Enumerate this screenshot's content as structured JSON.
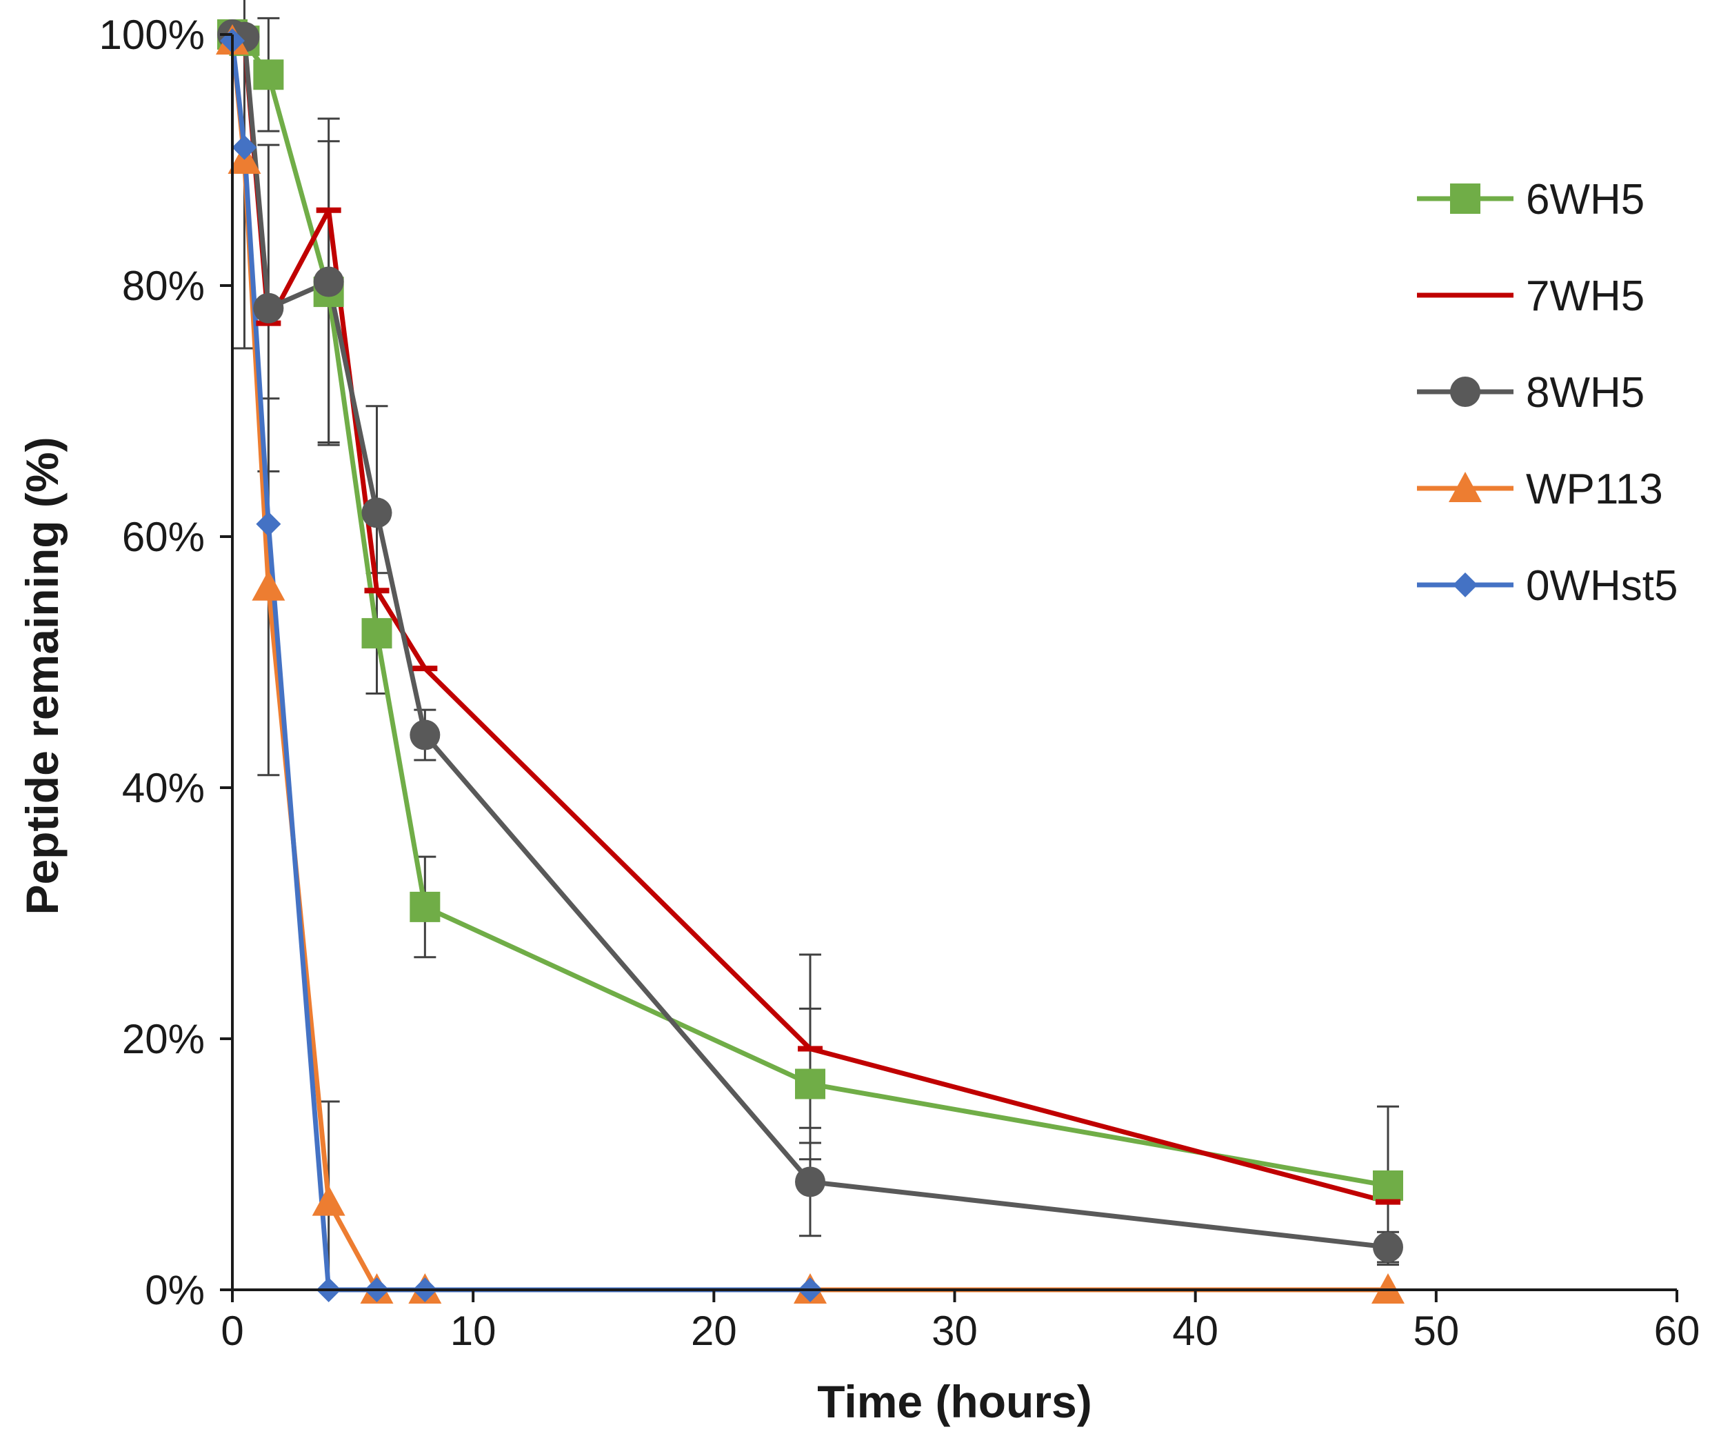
{
  "chart_data": {
    "type": "line",
    "title": "",
    "xlabel": "Time (hours)",
    "ylabel": "Peptide remaining (%)",
    "xlim": [
      0,
      60
    ],
    "ylim": [
      0,
      100
    ],
    "xticks": [
      0,
      10,
      20,
      30,
      40,
      50,
      60
    ],
    "xtick_labels": [
      "0",
      "10",
      "20",
      "30",
      "40",
      "50",
      "60"
    ],
    "yticks": [
      0,
      20,
      40,
      60,
      80,
      100
    ],
    "ytick_labels": [
      "0%",
      "20%",
      "40%",
      "60%",
      "80%",
      "100%"
    ],
    "grid": false,
    "legend_position": "right",
    "error_bar_color": "#404040",
    "series": [
      {
        "name": "6WH5",
        "color": "#70ad47",
        "marker": "square",
        "x": [
          0,
          0.5,
          1.5,
          4,
          6,
          8,
          24,
          48
        ],
        "y": [
          100,
          99.5,
          96.8,
          79.5,
          52.3,
          30.5,
          16.4,
          8.3
        ],
        "err": [
          0,
          0,
          4.5,
          12,
          4.8,
          4,
          6,
          6.3
        ]
      },
      {
        "name": "7WH5",
        "color": "#c00000",
        "marker": "none",
        "x": [
          0,
          0.5,
          1.5,
          4,
          6,
          8,
          24,
          48
        ],
        "y": [
          100,
          99.5,
          77,
          86,
          55.7,
          49.5,
          19.2,
          7
        ],
        "err": [
          0,
          0,
          0,
          0,
          0,
          0,
          7.5,
          0
        ]
      },
      {
        "name": "8WH5",
        "color": "#595959",
        "marker": "circle",
        "x": [
          0,
          0.5,
          1.5,
          4,
          6,
          8,
          24,
          48
        ],
        "y": [
          100,
          99.8,
          78.2,
          80.3,
          61.9,
          44.2,
          8.6,
          3.4
        ],
        "err": [
          0,
          0,
          13,
          13,
          8.5,
          2,
          4.3,
          1.2
        ]
      },
      {
        "name": "WP113",
        "color": "#ed7d31",
        "marker": "triangle",
        "x": [
          0,
          0.5,
          1.5,
          4,
          6,
          8,
          24,
          48
        ],
        "y": [
          99.5,
          90,
          56,
          7,
          0,
          0,
          0,
          0
        ],
        "err": [
          0,
          15,
          15,
          8,
          0,
          0,
          0,
          0
        ]
      },
      {
        "name": "0WHst5",
        "color": "#4472c4",
        "marker": "diamond",
        "x": [
          0,
          0.5,
          1.5,
          4,
          6,
          8,
          24
        ],
        "y": [
          99.5,
          91,
          61,
          0,
          0,
          0,
          0
        ],
        "err": [
          0,
          0,
          0,
          0,
          0,
          0,
          0
        ]
      }
    ]
  }
}
